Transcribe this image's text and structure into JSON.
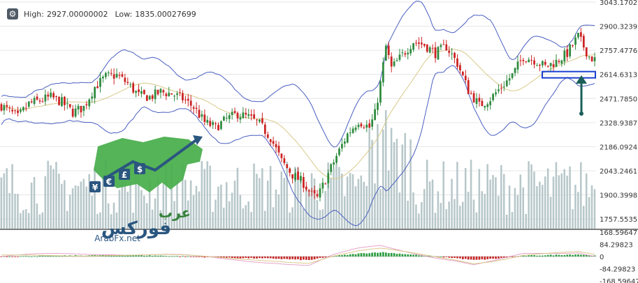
{
  "header": {
    "settings_icon": "gear-icon",
    "high_label": "High:",
    "high_value": "2927.00000002",
    "low_label": "Low:",
    "low_value": "1835.00027699"
  },
  "watermark": {
    "arabic_line1": "عرب",
    "arabic_line2": "فوركس",
    "site": "ArabFx.net",
    "icons": [
      "yen-icon",
      "euro-icon",
      "pound-icon",
      "dollar-icon"
    ]
  },
  "colors": {
    "bull": "#2e8b3e",
    "bear": "#cc2222",
    "volume": "#b7c7c9",
    "bollinger": "#4a5fc1",
    "ma": "#d9c98a",
    "macd_up": "#2f9e44",
    "macd_down": "#c62828",
    "annotation": "#1b5e5a",
    "highlight_box": "#1a3fd1"
  },
  "chart_data": [
    {
      "type": "candlestick",
      "panel": "price",
      "title": "",
      "ylim": [
        1700,
        3043.17
      ],
      "y_ticks": [
        "3043.1702",
        "2900.3239",
        "2757.4776",
        "2614.6313",
        "2471.7850",
        "2328.9387",
        "2186.0924",
        "2043.2461",
        "1900.3998",
        "1757.5535"
      ],
      "y_tick_values": [
        3043.1702,
        2900.3239,
        2757.4776,
        2614.6313,
        2471.785,
        2328.9387,
        2186.0924,
        2043.2461,
        1900.3998,
        1757.5535
      ],
      "high": 2927.00000002,
      "low": 1835.00027699,
      "close_anchors": [
        [
          0,
          2430
        ],
        [
          6,
          2360
        ],
        [
          10,
          2440
        ],
        [
          14,
          2460
        ],
        [
          18,
          2480
        ],
        [
          22,
          2450
        ],
        [
          26,
          2390
        ],
        [
          30,
          2420
        ],
        [
          34,
          2540
        ],
        [
          38,
          2600
        ],
        [
          42,
          2610
        ],
        [
          46,
          2560
        ],
        [
          50,
          2490
        ],
        [
          54,
          2480
        ],
        [
          58,
          2510
        ],
        [
          62,
          2500
        ],
        [
          66,
          2470
        ],
        [
          70,
          2420
        ],
        [
          74,
          2330
        ],
        [
          78,
          2300
        ],
        [
          82,
          2350
        ],
        [
          86,
          2380
        ],
        [
          90,
          2360
        ],
        [
          94,
          2320
        ],
        [
          98,
          2240
        ],
        [
          102,
          2100
        ],
        [
          106,
          2020
        ],
        [
          110,
          1970
        ],
        [
          113,
          1900
        ],
        [
          115,
          1880
        ],
        [
          118,
          1990
        ],
        [
          122,
          2130
        ],
        [
          126,
          2260
        ],
        [
          130,
          2340
        ],
        [
          134,
          2300
        ],
        [
          136,
          2380
        ],
        [
          138,
          2560
        ],
        [
          140,
          2780
        ],
        [
          142,
          2650
        ],
        [
          144,
          2690
        ],
        [
          146,
          2730
        ],
        [
          148,
          2770
        ],
        [
          150,
          2810
        ],
        [
          154,
          2790
        ],
        [
          158,
          2740
        ],
        [
          162,
          2780
        ],
        [
          166,
          2680
        ],
        [
          170,
          2520
        ],
        [
          174,
          2430
        ],
        [
          178,
          2470
        ],
        [
          182,
          2540
        ],
        [
          186,
          2610
        ],
        [
          190,
          2720
        ],
        [
          194,
          2700
        ],
        [
          198,
          2660
        ],
        [
          202,
          2690
        ],
        [
          206,
          2740
        ],
        [
          210,
          2840
        ],
        [
          212,
          2780
        ],
        [
          214,
          2720
        ],
        [
          216,
          2700
        ]
      ],
      "bollinger": {
        "upper_band": "blue",
        "lower_band": "blue",
        "middle": "tan"
      },
      "annotations": [
        {
          "type": "rectangle",
          "level": 2614.6313
        },
        {
          "type": "arrow_up"
        }
      ]
    },
    {
      "type": "bar",
      "panel": "volume",
      "series": "volume"
    },
    {
      "type": "histogram",
      "panel": "macd",
      "y_ticks": [
        "168.59647",
        "84.29823",
        "0",
        "-84.29823",
        "-168.59647"
      ],
      "ylim": [
        -168.596477,
        168.596477
      ],
      "anchors": [
        [
          0,
          0
        ],
        [
          20,
          5
        ],
        [
          40,
          10
        ],
        [
          60,
          5
        ],
        [
          80,
          -8
        ],
        [
          100,
          -15
        ],
        [
          112,
          -25
        ],
        [
          120,
          0
        ],
        [
          130,
          20
        ],
        [
          138,
          30
        ],
        [
          145,
          20
        ],
        [
          155,
          5
        ],
        [
          165,
          -10
        ],
        [
          172,
          -25
        ],
        [
          180,
          -15
        ],
        [
          190,
          5
        ],
        [
          200,
          10
        ],
        [
          210,
          15
        ],
        [
          216,
          5
        ]
      ]
    }
  ]
}
